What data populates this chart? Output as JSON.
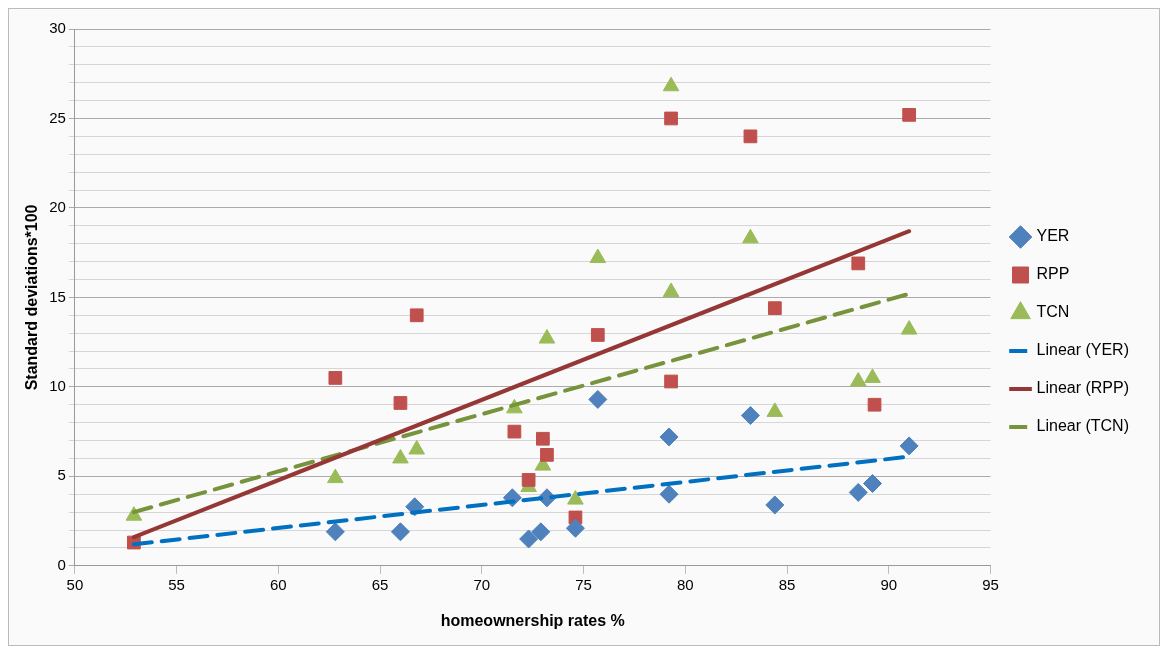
{
  "chart_data": {
    "type": "scatter",
    "xlabel": "homeownership rates %",
    "ylabel": "Standard deviations*100",
    "xlim": [
      50,
      95
    ],
    "xticks": [
      50,
      55,
      60,
      65,
      70,
      75,
      80,
      85,
      90,
      95
    ],
    "ylim": [
      0,
      30
    ],
    "yticks": [
      0,
      {
        "value": 1,
        "label": null
      },
      {
        "value": 2,
        "label": null
      },
      {
        "value": 3,
        "label": null
      },
      {
        "value": 4,
        "label": null
      },
      5,
      {
        "value": 6,
        "label": null
      },
      {
        "value": 7,
        "label": null
      },
      {
        "value": 8,
        "label": null
      },
      {
        "value": 9,
        "label": null
      },
      10,
      {
        "value": 11,
        "label": null
      },
      {
        "value": 12,
        "label": null
      },
      {
        "value": 13,
        "label": null
      },
      {
        "value": 14,
        "label": null
      },
      15,
      {
        "value": 16,
        "label": null
      },
      {
        "value": 17,
        "label": null
      },
      {
        "value": 18,
        "label": null
      },
      {
        "value": 19,
        "label": null
      },
      20,
      {
        "value": 21,
        "label": null
      },
      {
        "value": 22,
        "label": null
      },
      {
        "value": 23,
        "label": null
      },
      {
        "value": 24,
        "label": null
      },
      25,
      {
        "value": 26,
        "label": null
      },
      {
        "value": 27,
        "label": null
      },
      {
        "value": 28,
        "label": null
      },
      {
        "value": 29,
        "label": null
      },
      30
    ],
    "grid": "y",
    "legend": "right",
    "series": [
      {
        "name": "YER",
        "type": "scatter",
        "marker": "diamond",
        "color": "#4f81bd",
        "x": [
          62.8,
          66.0,
          66.7,
          71.5,
          72.3,
          72.9,
          73.2,
          74.6,
          75.7,
          79.2,
          79.2,
          83.2,
          84.4,
          88.5,
          89.2,
          91.0
        ],
        "values": [
          1.9,
          1.9,
          3.3,
          3.8,
          1.5,
          1.9,
          3.8,
          2.1,
          9.3,
          7.2,
          4.0,
          8.4,
          3.4,
          4.1,
          4.6,
          6.7
        ]
      },
      {
        "name": "RPP",
        "type": "scatter",
        "marker": "square",
        "color": "#c0504d",
        "x": [
          52.9,
          62.8,
          66.0,
          66.8,
          71.6,
          72.3,
          73.0,
          73.2,
          74.6,
          75.7,
          79.3,
          79.3,
          83.2,
          84.4,
          88.5,
          89.3,
          91.0
        ],
        "values": [
          1.3,
          10.5,
          9.1,
          14.0,
          7.5,
          4.8,
          7.1,
          6.2,
          2.7,
          12.9,
          25.0,
          10.3,
          24.0,
          14.4,
          16.9,
          9.0,
          25.2
        ]
      },
      {
        "name": "TCN",
        "type": "scatter",
        "marker": "triangle",
        "color": "#9bbb59",
        "x": [
          52.9,
          62.8,
          66.0,
          66.8,
          71.6,
          72.3,
          73.0,
          73.2,
          74.6,
          75.7,
          79.3,
          79.3,
          83.2,
          84.4,
          88.5,
          89.2,
          91.0
        ],
        "values": [
          2.8,
          4.9,
          6.0,
          6.5,
          8.8,
          4.4,
          5.6,
          12.7,
          3.7,
          17.2,
          26.8,
          15.3,
          18.3,
          8.6,
          10.3,
          10.5,
          13.2
        ]
      },
      {
        "name": "Linear (YER)",
        "type": "line",
        "marker": "none",
        "line_style": "dashed",
        "color": "#0070c0",
        "x": [
          52.9,
          91.0
        ],
        "values": [
          1.2,
          6.1
        ]
      },
      {
        "name": "Linear (RPP)",
        "type": "line",
        "marker": "none",
        "line_style": "solid",
        "color": "#953735",
        "x": [
          52.9,
          91.0
        ],
        "values": [
          1.6,
          18.7
        ]
      },
      {
        "name": "Linear (TCN)",
        "type": "line",
        "marker": "none",
        "line_style": "dashed",
        "color": "#77933c",
        "x": [
          52.9,
          91.0
        ],
        "values": [
          3.0,
          15.2
        ]
      }
    ]
  }
}
